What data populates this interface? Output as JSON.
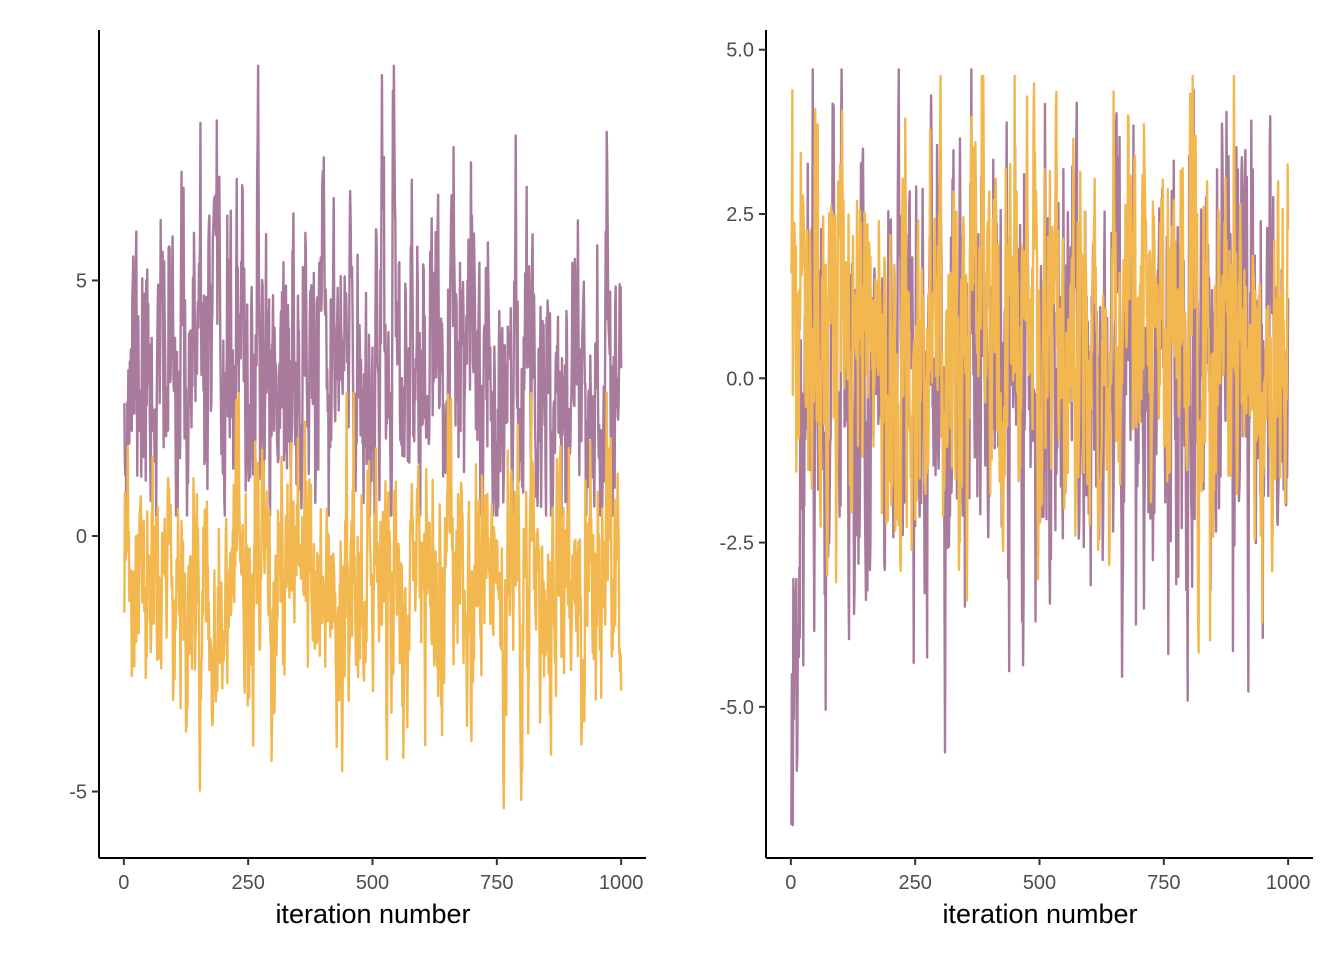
{
  "colors": {
    "series_purple": "#a87a9c",
    "series_orange": "#f2b84f",
    "axis": "#000000",
    "tick_text": "#4d4d4d"
  },
  "chart_data": [
    {
      "type": "line",
      "xlabel": "iteration number",
      "ylabel": "",
      "xlim": [
        -50,
        1050
      ],
      "ylim": [
        -6.3,
        9.9
      ],
      "xticks": [
        0,
        250,
        500,
        750,
        1000
      ],
      "xtick_labels": [
        "0",
        "250",
        "500",
        "750",
        "1000"
      ],
      "yticks": [
        -5,
        0,
        5
      ],
      "ytick_labels": [
        "-5",
        "0",
        "5"
      ],
      "grid": false,
      "legend": "none",
      "n_points": 1000,
      "series": [
        {
          "color": "#a87a9c",
          "mean": 3.3,
          "sd": 1.55,
          "phi": 0.55,
          "start": 2.6,
          "min": 0.4,
          "max": 9.2,
          "seed": 11
        },
        {
          "color": "#f2b84f",
          "mean": -1.1,
          "sd": 1.25,
          "phi": 0.5,
          "start": -1.5,
          "min": -5.6,
          "max": 2.8,
          "seed": 23
        }
      ]
    },
    {
      "type": "line",
      "xlabel": "iteration number",
      "ylabel": "",
      "xlim": [
        -50,
        1050
      ],
      "ylim": [
        -7.3,
        5.3
      ],
      "xticks": [
        0,
        250,
        500,
        750,
        1000
      ],
      "xtick_labels": [
        "0",
        "250",
        "500",
        "750",
        "1000"
      ],
      "yticks": [
        -5.0,
        -2.5,
        0.0,
        2.5,
        5.0
      ],
      "ytick_labels": [
        "-5.0",
        "-2.5",
        "0.0",
        "2.5",
        "5.0"
      ],
      "grid": false,
      "legend": "none",
      "n_points": 1000,
      "series": [
        {
          "color": "#a87a9c",
          "mean": 0.2,
          "sd": 1.75,
          "phi": 0.5,
          "start": -6.8,
          "min": -6.8,
          "max": 4.7,
          "seed": 37,
          "initial_transient": -6.0,
          "transient_len": 20
        },
        {
          "color": "#f2b84f",
          "mean": 0.6,
          "sd": 1.45,
          "phi": 0.5,
          "start": 1.6,
          "min": -5.0,
          "max": 4.6,
          "seed": 53
        }
      ]
    }
  ]
}
